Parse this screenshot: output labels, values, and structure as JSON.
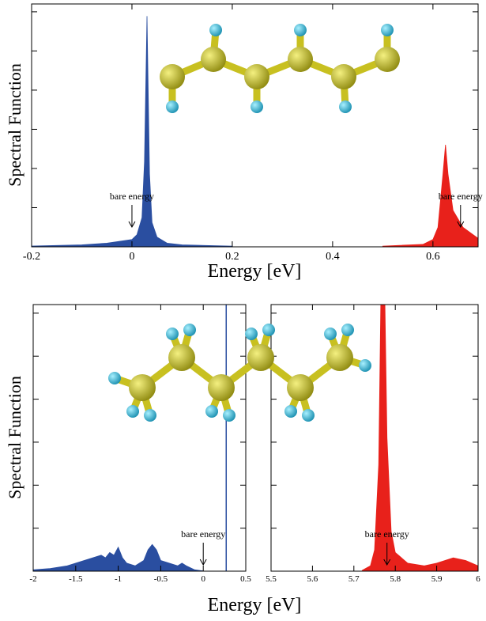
{
  "chart_data": [
    {
      "type": "area",
      "xlabel": "Energy [eV]",
      "ylabel": "Spectral Function",
      "xlim": [
        -0.2,
        0.69
      ],
      "xticks": [
        -0.2,
        0,
        0.2,
        0.4,
        0.6
      ],
      "ylim": [
        0,
        1
      ],
      "series": [
        {
          "color": "#2a4ea0",
          "x": [
            -0.2,
            -0.1,
            -0.05,
            0,
            0.01,
            0.02,
            0.025,
            0.03,
            0.035,
            0.04,
            0.05,
            0.07,
            0.1,
            0.2
          ],
          "values": [
            0.003,
            0.008,
            0.015,
            0.03,
            0.05,
            0.12,
            0.35,
            0.95,
            0.3,
            0.1,
            0.04,
            0.015,
            0.008,
            0.003
          ]
        },
        {
          "color": "#e8211b",
          "x": [
            0.5,
            0.58,
            0.6,
            0.61,
            0.62,
            0.625,
            0.63,
            0.64,
            0.66,
            0.68,
            0.69
          ],
          "values": [
            0.003,
            0.01,
            0.03,
            0.08,
            0.3,
            0.42,
            0.3,
            0.15,
            0.08,
            0.05,
            0.035
          ]
        }
      ],
      "annotations": [
        {
          "text": "bare energy",
          "x": 0
        },
        {
          "text": "bare energy",
          "x": 0.655
        }
      ]
    },
    {
      "type": "area",
      "xlabel": "Energy [eV]",
      "ylabel": "Spectral Function",
      "xlim": [
        -2,
        0.5
      ],
      "xticks": [
        -2,
        -1.5,
        -1,
        -0.5,
        0,
        0.5
      ],
      "ylim": [
        0,
        1
      ],
      "series": [
        {
          "color": "#2a4ea0",
          "x": [
            -2,
            -1.8,
            -1.6,
            -1.5,
            -1.4,
            -1.3,
            -1.2,
            -1.15,
            -1.1,
            -1.05,
            -1,
            -0.95,
            -0.9,
            -0.8,
            -0.7,
            -0.65,
            -0.6,
            -0.55,
            -0.5,
            -0.4,
            -0.3,
            -0.25,
            -0.2,
            -0.1,
            0
          ],
          "values": [
            0.005,
            0.01,
            0.02,
            0.03,
            0.04,
            0.05,
            0.06,
            0.05,
            0.07,
            0.06,
            0.09,
            0.05,
            0.03,
            0.02,
            0.04,
            0.08,
            0.1,
            0.08,
            0.04,
            0.03,
            0.02,
            0.03,
            0.02,
            0.005,
            0.001
          ]
        },
        {
          "type": "line",
          "color": "#2a4ea0",
          "x": [
            0.27,
            0.27
          ],
          "values": [
            0,
            1
          ]
        }
      ],
      "annotations": [
        {
          "text": "bare energy",
          "x": 0
        }
      ]
    },
    {
      "type": "area",
      "xlim": [
        5.5,
        6
      ],
      "xticks": [
        5.5,
        5.6,
        5.7,
        5.8,
        5.9,
        6
      ],
      "ylim": [
        0,
        1
      ],
      "series": [
        {
          "color": "#e8211b",
          "x": [
            5.72,
            5.74,
            5.75,
            5.76,
            5.765,
            5.775,
            5.78,
            5.79,
            5.8,
            5.83,
            5.87,
            5.9,
            5.94,
            5.97,
            6
          ],
          "values": [
            0.003,
            0.02,
            0.08,
            0.4,
            1,
            1,
            0.5,
            0.15,
            0.07,
            0.03,
            0.02,
            0.03,
            0.05,
            0.04,
            0.02
          ]
        }
      ],
      "annotations": [
        {
          "text": "bare energy",
          "x": 5.78
        }
      ]
    }
  ]
}
